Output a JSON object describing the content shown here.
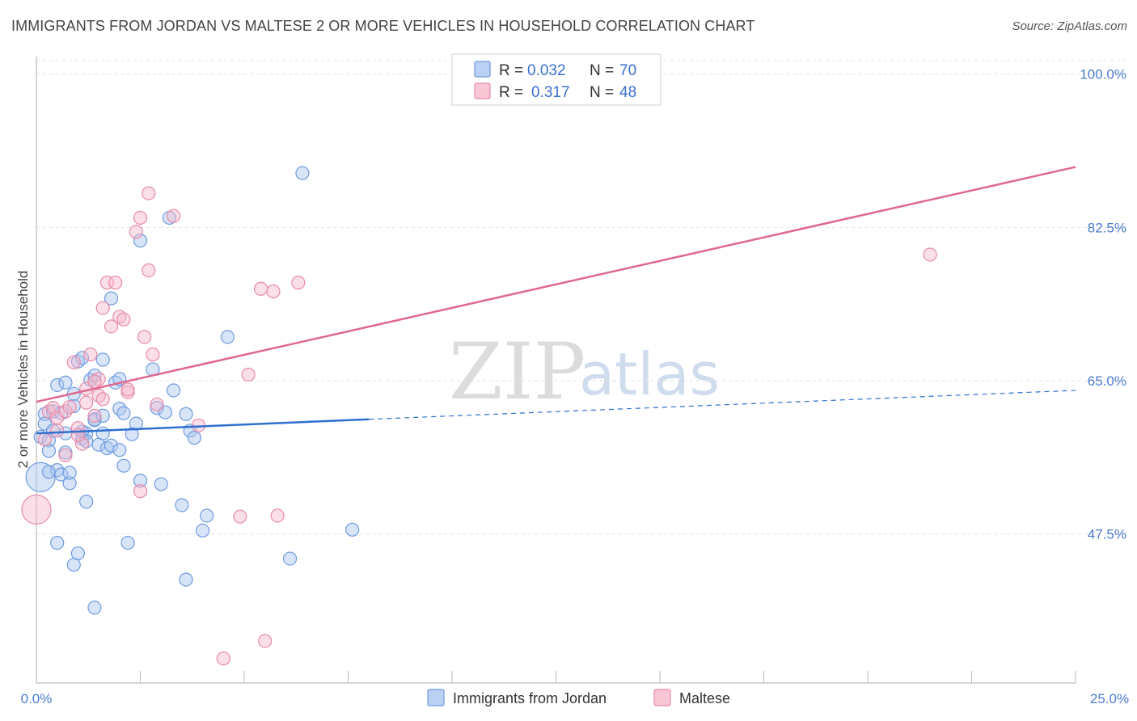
{
  "title": "IMMIGRANTS FROM JORDAN VS MALTESE 2 OR MORE VEHICLES IN HOUSEHOLD CORRELATION CHART",
  "source": "Source: ZipAtlas.com",
  "watermark": {
    "zip": "ZIP",
    "atlas": "atlas"
  },
  "colors": {
    "jordan_fill": "#a9c6f0",
    "jordan_stroke": "#6f9be0",
    "jordan_line": "#2e6fd0",
    "maltese_fill": "#f6b8cb",
    "maltese_stroke": "#e88aa8",
    "maltese_line": "#e06890",
    "grid": "#e2e2e2",
    "tick_text": "#4a7bd0"
  },
  "legend": {
    "rows": [
      {
        "r_label": "R =",
        "r_value": "0.032",
        "n_label": "N =",
        "n_value": "70"
      },
      {
        "r_label": "R =",
        "r_value": "0.317",
        "n_label": "N =",
        "n_value": "48"
      }
    ]
  },
  "chart_data": {
    "type": "scatter",
    "title": "IMMIGRANTS FROM JORDAN VS MALTESE 2 OR MORE VEHICLES IN HOUSEHOLD CORRELATION CHART",
    "xlabel": "",
    "ylabel": "2 or more Vehicles in Household",
    "xlim": [
      0,
      25
    ],
    "ylim": [
      30.5,
      102
    ],
    "x_tick_labels": [
      "0.0%",
      "25.0%"
    ],
    "y_ticks": [
      47.5,
      65.0,
      82.5,
      100.0
    ],
    "y_tick_labels": [
      "47.5%",
      "65.0%",
      "82.5%",
      "100.0%"
    ],
    "grid": true,
    "series": [
      {
        "name": "Immigrants from Jordan",
        "R": 0.032,
        "N": 70,
        "trend": {
          "x0": 0,
          "y0": 59.0,
          "x1": 8,
          "y1": 60.6,
          "dashed_to_x": 25,
          "dashed_to_y": 63.9
        },
        "points": [
          [
            0.1,
            58.6
          ],
          [
            0.1,
            54.0
          ],
          [
            0.2,
            61.2
          ],
          [
            0.2,
            60.1
          ],
          [
            0.3,
            58.2
          ],
          [
            0.3,
            57.0
          ],
          [
            0.4,
            61.5
          ],
          [
            0.4,
            59.3
          ],
          [
            0.5,
            64.5
          ],
          [
            0.5,
            54.8
          ],
          [
            0.5,
            46.5
          ],
          [
            0.6,
            61.3
          ],
          [
            0.6,
            54.3
          ],
          [
            0.7,
            56.8
          ],
          [
            0.7,
            64.8
          ],
          [
            0.8,
            53.3
          ],
          [
            0.8,
            54.5
          ],
          [
            0.9,
            62.1
          ],
          [
            0.9,
            63.5
          ],
          [
            1.0,
            67.2
          ],
          [
            1.0,
            45.3
          ],
          [
            1.1,
            58.4
          ],
          [
            1.1,
            67.6
          ],
          [
            1.2,
            51.2
          ],
          [
            1.2,
            59.0
          ],
          [
            1.3,
            65.1
          ],
          [
            1.4,
            60.6
          ],
          [
            1.4,
            65.6
          ],
          [
            1.5,
            57.7
          ],
          [
            1.6,
            59.0
          ],
          [
            1.6,
            67.4
          ],
          [
            1.7,
            57.3
          ],
          [
            1.8,
            74.4
          ],
          [
            1.9,
            64.8
          ],
          [
            2.0,
            61.8
          ],
          [
            2.0,
            65.2
          ],
          [
            2.1,
            61.3
          ],
          [
            2.1,
            55.3
          ],
          [
            2.2,
            46.5
          ],
          [
            2.4,
            60.1
          ],
          [
            2.5,
            53.6
          ],
          [
            2.8,
            66.3
          ],
          [
            2.9,
            61.9
          ],
          [
            3.0,
            53.2
          ],
          [
            3.1,
            61.4
          ],
          [
            3.3,
            63.9
          ],
          [
            3.5,
            50.8
          ],
          [
            3.6,
            61.2
          ],
          [
            3.7,
            59.3
          ],
          [
            3.8,
            58.5
          ],
          [
            4.0,
            47.9
          ],
          [
            4.1,
            49.6
          ],
          [
            2.5,
            81.0
          ],
          [
            3.2,
            83.6
          ],
          [
            6.4,
            88.7
          ],
          [
            1.4,
            60.5
          ],
          [
            4.6,
            70.0
          ],
          [
            7.6,
            48.0
          ],
          [
            6.1,
            44.7
          ],
          [
            3.6,
            42.3
          ],
          [
            1.4,
            39.1
          ],
          [
            0.9,
            44.0
          ],
          [
            1.8,
            57.6
          ],
          [
            2.0,
            57.1
          ],
          [
            1.1,
            59.2
          ],
          [
            0.3,
            54.6
          ],
          [
            0.7,
            59.0
          ],
          [
            1.6,
            61.0
          ],
          [
            2.3,
            58.9
          ],
          [
            1.2,
            58.1
          ]
        ]
      },
      {
        "name": "Maltese",
        "R": 0.317,
        "N": 48,
        "trend": {
          "x0": 0,
          "y0": 62.6,
          "x1": 25,
          "y1": 89.4
        },
        "points": [
          [
            0.0,
            50.3
          ],
          [
            0.2,
            58.3
          ],
          [
            0.3,
            61.5
          ],
          [
            0.4,
            61.9
          ],
          [
            0.5,
            60.8
          ],
          [
            0.7,
            61.5
          ],
          [
            0.7,
            56.5
          ],
          [
            0.8,
            62.0
          ],
          [
            0.9,
            67.1
          ],
          [
            1.0,
            59.6
          ],
          [
            1.1,
            57.8
          ],
          [
            1.2,
            64.1
          ],
          [
            1.3,
            68.0
          ],
          [
            1.4,
            61.0
          ],
          [
            1.5,
            65.2
          ],
          [
            1.5,
            63.3
          ],
          [
            1.6,
            62.9
          ],
          [
            1.6,
            73.3
          ],
          [
            1.7,
            76.2
          ],
          [
            1.8,
            71.2
          ],
          [
            1.9,
            76.2
          ],
          [
            2.0,
            72.3
          ],
          [
            2.1,
            72.0
          ],
          [
            2.2,
            63.7
          ],
          [
            2.4,
            82.0
          ],
          [
            2.5,
            52.4
          ],
          [
            2.5,
            83.6
          ],
          [
            2.6,
            70.0
          ],
          [
            2.7,
            77.6
          ],
          [
            2.7,
            86.4
          ],
          [
            2.8,
            68.0
          ],
          [
            2.9,
            62.3
          ],
          [
            3.3,
            83.8
          ],
          [
            3.9,
            59.9
          ],
          [
            4.9,
            49.5
          ],
          [
            5.1,
            65.7
          ],
          [
            5.4,
            75.5
          ],
          [
            5.7,
            75.2
          ],
          [
            5.8,
            49.6
          ],
          [
            6.3,
            76.2
          ],
          [
            4.5,
            33.3
          ],
          [
            5.5,
            35.3
          ],
          [
            21.5,
            79.4
          ],
          [
            1.2,
            62.5
          ],
          [
            0.5,
            59.3
          ],
          [
            1.0,
            58.8
          ],
          [
            2.2,
            64.0
          ],
          [
            1.4,
            64.9
          ]
        ]
      }
    ]
  },
  "bottom_legend": [
    {
      "label": "Immigrants from Jordan"
    },
    {
      "label": "Maltese"
    }
  ]
}
